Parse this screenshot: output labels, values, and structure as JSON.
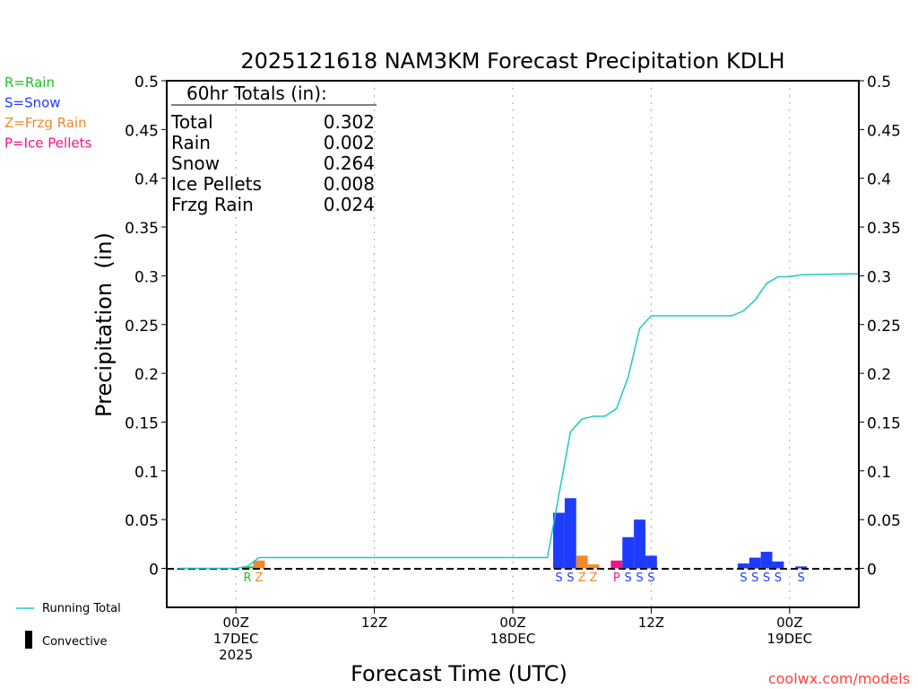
{
  "chart_data": {
    "type": "bar",
    "title": "2025121618 NAM3KM Forecast Precipitation KDLH",
    "xlabel": "Forecast Time (UTC)",
    "ylabel": "Precipitation  (in)",
    "ylim": [
      -0.04,
      0.5
    ],
    "xlim_hours_from_00Z17DEC": [
      -6,
      54
    ],
    "y_ticks": [
      0,
      0.05,
      0.1,
      0.15,
      0.2,
      0.25,
      0.3,
      0.35,
      0.4,
      0.45,
      0.5
    ],
    "y_tick_labels": [
      "0",
      "0.05",
      "0.1",
      "0.15",
      "0.2",
      "0.25",
      "0.3",
      "0.35",
      "0.4",
      "0.45",
      "0.5"
    ],
    "x_ticks": [
      {
        "hour": 0,
        "lines": [
          "00Z",
          "17DEC",
          "2025"
        ]
      },
      {
        "hour": 12,
        "lines": [
          "12Z"
        ]
      },
      {
        "hour": 24,
        "lines": [
          "00Z",
          "18DEC"
        ]
      },
      {
        "hour": 36,
        "lines": [
          "12Z"
        ]
      },
      {
        "hour": 48,
        "lines": [
          "00Z",
          "19DEC"
        ]
      }
    ],
    "colors": {
      "R": "#22c022",
      "S": "#1e3cff",
      "Z": "#f0882a",
      "P": "#f0148c",
      "running": "#1ec8c8"
    },
    "bars": [
      {
        "hour": 1,
        "type": "R",
        "value": 0.002
      },
      {
        "hour": 2,
        "type": "Z",
        "value": 0.008
      },
      {
        "hour": 28,
        "type": "S",
        "value": 0.057
      },
      {
        "hour": 29,
        "type": "S",
        "value": 0.072
      },
      {
        "hour": 30,
        "type": "Z",
        "value": 0.013
      },
      {
        "hour": 31,
        "type": "Z",
        "value": 0.004
      },
      {
        "hour": 33,
        "type": "P",
        "value": 0.008
      },
      {
        "hour": 34,
        "type": "S",
        "value": 0.032
      },
      {
        "hour": 35,
        "type": "S",
        "value": 0.05
      },
      {
        "hour": 36,
        "type": "S",
        "value": 0.013
      },
      {
        "hour": 44,
        "type": "S",
        "value": 0.005
      },
      {
        "hour": 45,
        "type": "S",
        "value": 0.011
      },
      {
        "hour": 46,
        "type": "S",
        "value": 0.017
      },
      {
        "hour": 47,
        "type": "S",
        "value": 0.007
      },
      {
        "hour": 49,
        "type": "S",
        "value": 0.002
      }
    ],
    "running_total": [
      [
        -5,
        0
      ],
      [
        0,
        0
      ],
      [
        1,
        0.002
      ],
      [
        2,
        0.011
      ],
      [
        27,
        0.011
      ],
      [
        29,
        0.14
      ],
      [
        30,
        0.153
      ],
      [
        31,
        0.156
      ],
      [
        32,
        0.156
      ],
      [
        33,
        0.164
      ],
      [
        34,
        0.196
      ],
      [
        35,
        0.246
      ],
      [
        36,
        0.259
      ],
      [
        43,
        0.259
      ],
      [
        44,
        0.264
      ],
      [
        45,
        0.275
      ],
      [
        46,
        0.292
      ],
      [
        47,
        0.299
      ],
      [
        48,
        0.299
      ],
      [
        49,
        0.301
      ],
      [
        53,
        0.302
      ],
      [
        54,
        0.302
      ]
    ],
    "totals_box": {
      "heading": "60hr Totals (in):",
      "rows": [
        {
          "label": "Total",
          "value": "0.302"
        },
        {
          "label": "Rain",
          "value": "0.002"
        },
        {
          "label": "Snow",
          "value": "0.264"
        },
        {
          "label": "Ice Pellets",
          "value": "0.008"
        },
        {
          "label": "Frzg Rain",
          "value": "0.024"
        }
      ]
    },
    "type_legend": [
      {
        "key": "R",
        "label": "R=Rain"
      },
      {
        "key": "S",
        "label": "S=Snow"
      },
      {
        "key": "Z",
        "label": "Z=Frzg Rain"
      },
      {
        "key": "P",
        "label": "P=Ice Pellets"
      }
    ],
    "bottom_legend": {
      "running": "Running Total",
      "convective": "Convective"
    },
    "watermark": "coolwx.com/models"
  }
}
